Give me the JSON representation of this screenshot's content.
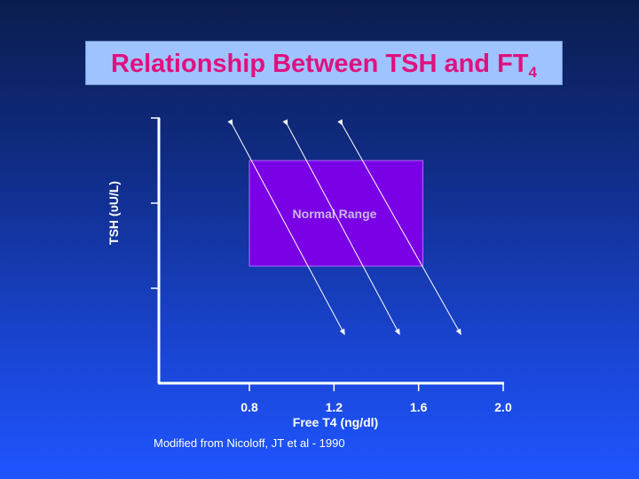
{
  "title": {
    "main": "Relationship Between TSH and FT",
    "subscript": "4"
  },
  "chart_data": {
    "type": "diagram",
    "xlabel": "Free T4 (ng/dl)",
    "ylabel": "TSH (υU/L)",
    "x_ticks": [
      "0.8",
      "1.2",
      "1.6",
      "2.0"
    ],
    "region": {
      "label": "Normal Range",
      "x_range": [
        0.8,
        1.62
      ]
    },
    "arrows": [
      {
        "from_x": 0.72,
        "to_x": 1.25
      },
      {
        "from_x": 0.98,
        "to_x": 1.51
      },
      {
        "from_x": 1.24,
        "to_x": 1.8
      }
    ],
    "colors": {
      "region_fill": "#7a00e6",
      "region_stroke": "#b06bff",
      "axis": "#ffffff",
      "title": "#e0107e"
    }
  },
  "credit": "Modified from Nicoloff, JT et al - 1990"
}
